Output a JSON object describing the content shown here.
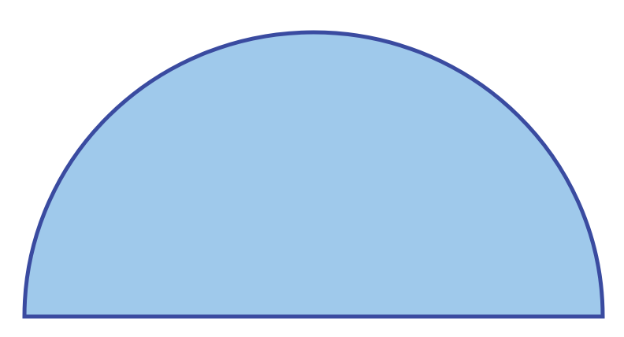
{
  "diagram": {
    "shape": "semicircle",
    "fill_color": "#9fc9eb",
    "stroke_color": "#3a4ba0"
  }
}
